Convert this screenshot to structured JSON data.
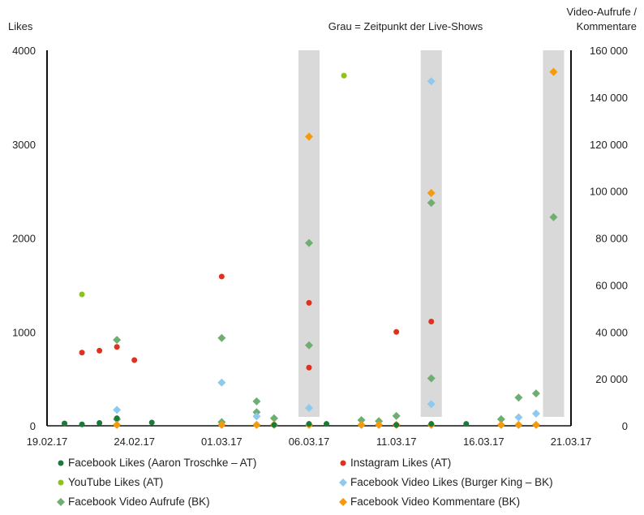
{
  "chart_data": {
    "type": "scatter",
    "title": "",
    "annotation": "Grau = Zeitpunkt der Live-Shows",
    "y_left": {
      "label": "Likes",
      "ylim": [
        0,
        4000
      ],
      "ticks": [
        "0",
        "1000",
        "2000",
        "3000",
        "4000"
      ]
    },
    "y_right": {
      "label_line1": "Video-Aufrufe /",
      "label_line2": "Kommentare",
      "ylim": [
        0,
        160000
      ],
      "ticks": [
        "0",
        "20 000",
        "40 000",
        "60 000",
        "80 000",
        "100 000",
        "120 000",
        "140 000",
        "160 000"
      ]
    },
    "x_axis": {
      "xlim": [
        "19.02.17",
        "21.03.17"
      ],
      "tick_labels": [
        "19.02.17",
        "24.02.17",
        "01.03.17",
        "06.03.17",
        "11.03.17",
        "16.03.17",
        "21.03.17"
      ]
    },
    "grid": false,
    "live_shows": [
      "06.03.17",
      "13.03.17",
      "20.03.17"
    ],
    "legend_position": "bottom",
    "series": [
      {
        "name": "Facebook Likes (Aaron Troschke – AT)",
        "color": "#1a7a3a",
        "marker": "circle",
        "axis": "left",
        "points": [
          [
            "20.02.17",
            25
          ],
          [
            "21.02.17",
            15
          ],
          [
            "22.02.17",
            30
          ],
          [
            "23.02.17",
            80
          ],
          [
            "25.02.17",
            35
          ],
          [
            "04.03.17",
            10
          ],
          [
            "06.03.17",
            20
          ],
          [
            "07.03.17",
            20
          ],
          [
            "11.03.17",
            10
          ],
          [
            "13.03.17",
            20
          ],
          [
            "15.03.17",
            20
          ]
        ]
      },
      {
        "name": "Instagram Likes (AT)",
        "color": "#e0301e",
        "marker": "circle",
        "axis": "left",
        "points": [
          [
            "21.02.17",
            780
          ],
          [
            "22.02.17",
            800
          ],
          [
            "23.02.17",
            840
          ],
          [
            "24.02.17",
            700
          ],
          [
            "01.03.17",
            1590
          ],
          [
            "06.03.17",
            1310
          ],
          [
            "06.03.17",
            620
          ],
          [
            "11.03.17",
            1000
          ],
          [
            "13.03.17",
            1110
          ]
        ]
      },
      {
        "name": "YouTube Likes (AT)",
        "color": "#8cc21b",
        "marker": "circle",
        "axis": "left",
        "points": [
          [
            "21.02.17",
            1400
          ],
          [
            "08.03.17",
            3730
          ]
        ]
      },
      {
        "name": "Facebook Video Likes (Burger King – BK)",
        "color": "#8ec9ee",
        "marker": "diamond",
        "axis": "left",
        "points": [
          [
            "23.02.17",
            170
          ],
          [
            "01.03.17",
            460
          ],
          [
            "03.03.17",
            100
          ],
          [
            "06.03.17",
            190
          ],
          [
            "13.03.17",
            3670
          ],
          [
            "13.03.17",
            230
          ],
          [
            "18.03.17",
            90
          ],
          [
            "19.03.17",
            130
          ]
        ]
      },
      {
        "name": "Facebook Video Aufrufe (BK)",
        "color": "#6fae71",
        "marker": "diamond",
        "axis": "right",
        "points": [
          [
            "23.02.17",
            36600
          ],
          [
            "23.02.17",
            2800
          ],
          [
            "01.03.17",
            37400
          ],
          [
            "01.03.17",
            1600
          ],
          [
            "03.03.17",
            10400
          ],
          [
            "03.03.17",
            5800
          ],
          [
            "04.03.17",
            3200
          ],
          [
            "06.03.17",
            77900
          ],
          [
            "06.03.17",
            34300
          ],
          [
            "09.03.17",
            2400
          ],
          [
            "10.03.17",
            2000
          ],
          [
            "11.03.17",
            4200
          ],
          [
            "13.03.17",
            95000
          ],
          [
            "13.03.17",
            20200
          ],
          [
            "17.03.17",
            2800
          ],
          [
            "18.03.17",
            12000
          ],
          [
            "19.03.17",
            13800
          ],
          [
            "20.03.17",
            88900
          ]
        ]
      },
      {
        "name": "Facebook Video Kommentare (BK)",
        "color": "#f59a0c",
        "marker": "diamond",
        "axis": "right",
        "points": [
          [
            "23.02.17",
            400
          ],
          [
            "01.03.17",
            400
          ],
          [
            "03.03.17",
            400
          ],
          [
            "04.03.17",
            400
          ],
          [
            "06.03.17",
            123200
          ],
          [
            "06.03.17",
            400
          ],
          [
            "09.03.17",
            400
          ],
          [
            "10.03.17",
            400
          ],
          [
            "11.03.17",
            400
          ],
          [
            "13.03.17",
            99200
          ],
          [
            "13.03.17",
            400
          ],
          [
            "17.03.17",
            400
          ],
          [
            "18.03.17",
            400
          ],
          [
            "19.03.17",
            400
          ],
          [
            "20.03.17",
            150800
          ]
        ]
      }
    ]
  }
}
